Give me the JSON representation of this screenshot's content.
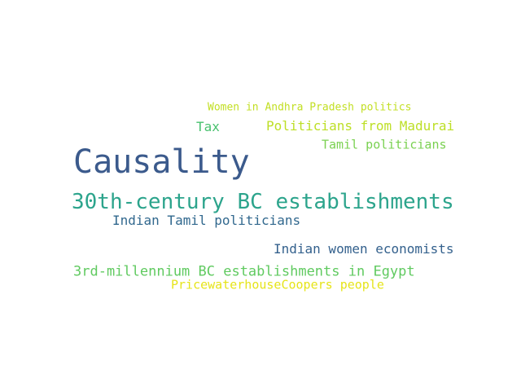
{
  "wordcloud": {
    "words": [
      {
        "text": "Women in Andhra Pradesh politics",
        "color": "#c2df23"
      },
      {
        "text": "Tax",
        "color": "#48c16e"
      },
      {
        "text": "Politicians from Madurai",
        "color": "#bddf26"
      },
      {
        "text": "Tamil politicians",
        "color": "#7ad151"
      },
      {
        "text": "Causality",
        "color": "#3b5a8c"
      },
      {
        "text": "30th-century BC establishments",
        "color": "#2ca48c"
      },
      {
        "text": "Indian Tamil politicians",
        "color": "#31688e"
      },
      {
        "text": "Indian women economists",
        "color": "#34618d"
      },
      {
        "text": "3rd-millennium BC establishments in Egypt",
        "color": "#60ca60"
      },
      {
        "text": "PricewaterhouseCoopers people",
        "color": "#e6e419"
      }
    ]
  }
}
